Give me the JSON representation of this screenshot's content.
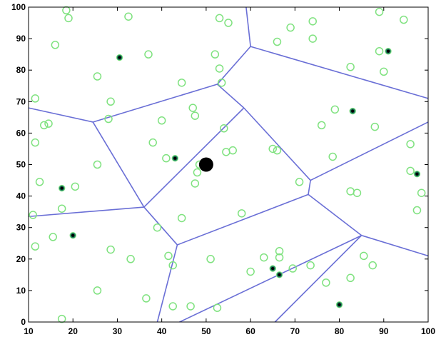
{
  "chart_data": {
    "type": "scatter",
    "title": "",
    "xlabel": "",
    "ylabel": "",
    "xlim": [
      10,
      100
    ],
    "ylim": [
      0,
      100
    ],
    "x_ticks": [
      "10",
      "20",
      "30",
      "40",
      "50",
      "60",
      "70",
      "80",
      "90",
      "100"
    ],
    "y_ticks": [
      "0",
      "10",
      "20",
      "30",
      "40",
      "50",
      "60",
      "70",
      "80",
      "90",
      "100"
    ],
    "grid": false,
    "legend": "none",
    "colors": {
      "circles": "#7fe27f",
      "stars": "#000000",
      "star_fill": "#1f7f60",
      "voronoi_edges": "#6a6fd6",
      "center": "#000000",
      "axes": "#000000"
    },
    "series": [
      {
        "marker": "circle",
        "points": [
          [
            18.5,
            99
          ],
          [
            19,
            96.5
          ],
          [
            16,
            88
          ],
          [
            32.5,
            97
          ],
          [
            53,
            96.5
          ],
          [
            55,
            95
          ],
          [
            74,
            95.5
          ],
          [
            89,
            98.5
          ],
          [
            94.5,
            96
          ],
          [
            69,
            93.5
          ],
          [
            66,
            89
          ],
          [
            74,
            90
          ],
          [
            37,
            85
          ],
          [
            52,
            85
          ],
          [
            53,
            80.5
          ],
          [
            82.5,
            81
          ],
          [
            89,
            86
          ],
          [
            90,
            79.5
          ],
          [
            25.5,
            78
          ],
          [
            44.5,
            76
          ],
          [
            53.5,
            76
          ],
          [
            11.5,
            71
          ],
          [
            28.5,
            70
          ],
          [
            47,
            68
          ],
          [
            47.5,
            65.5
          ],
          [
            40,
            64
          ],
          [
            28,
            64.5
          ],
          [
            14.5,
            63
          ],
          [
            13.5,
            62.5
          ],
          [
            79,
            67.5
          ],
          [
            88,
            62
          ],
          [
            76,
            62.5
          ],
          [
            54,
            61.5
          ],
          [
            11.5,
            57
          ],
          [
            38,
            57
          ],
          [
            56,
            54.5
          ],
          [
            54.5,
            54
          ],
          [
            65,
            55
          ],
          [
            66,
            54.5
          ],
          [
            78.5,
            52.5
          ],
          [
            96,
            56.5
          ],
          [
            25.5,
            50
          ],
          [
            41,
            52
          ],
          [
            48.5,
            50
          ],
          [
            48,
            47.5
          ],
          [
            96,
            48
          ],
          [
            12.5,
            44.5
          ],
          [
            20.5,
            43
          ],
          [
            47.5,
            44
          ],
          [
            71,
            44.5
          ],
          [
            82.5,
            41.5
          ],
          [
            84,
            41
          ],
          [
            98.5,
            41
          ],
          [
            97.5,
            35.5
          ],
          [
            17.5,
            36
          ],
          [
            11,
            34
          ],
          [
            58,
            34.5
          ],
          [
            44.5,
            33
          ],
          [
            15.5,
            27
          ],
          [
            39,
            30
          ],
          [
            11.5,
            24
          ],
          [
            28.5,
            23
          ],
          [
            66.5,
            22.5
          ],
          [
            63,
            20.5
          ],
          [
            66.5,
            20.5
          ],
          [
            41.5,
            21
          ],
          [
            42.5,
            18
          ],
          [
            51,
            20
          ],
          [
            33,
            20
          ],
          [
            60,
            16
          ],
          [
            69.5,
            17
          ],
          [
            73.5,
            18
          ],
          [
            85.5,
            21
          ],
          [
            87.5,
            18
          ],
          [
            77,
            12.5
          ],
          [
            82.5,
            14
          ],
          [
            25.5,
            10
          ],
          [
            36.5,
            7.5
          ],
          [
            42.5,
            5
          ],
          [
            46.5,
            5
          ],
          [
            52.5,
            4.5
          ],
          [
            17.5,
            1
          ]
        ]
      },
      {
        "marker": "star",
        "points": [
          [
            30.5,
            84
          ],
          [
            91,
            86
          ],
          [
            83,
            67
          ],
          [
            43,
            52
          ],
          [
            97.5,
            47
          ],
          [
            17.5,
            42.5
          ],
          [
            20,
            27.5
          ],
          [
            65,
            17
          ],
          [
            66.5,
            15
          ],
          [
            80,
            5.5
          ]
        ]
      },
      {
        "marker": "large-dot",
        "points": [
          [
            50,
            50
          ]
        ]
      }
    ],
    "voronoi_edges": [
      [
        [
          10,
          68
        ],
        [
          24.5,
          63.5
        ]
      ],
      [
        [
          24.5,
          63.5
        ],
        [
          52.5,
          75.5
        ]
      ],
      [
        [
          52.5,
          75.5
        ],
        [
          60,
          87.5
        ]
      ],
      [
        [
          60,
          87.5
        ],
        [
          59,
          100
        ]
      ],
      [
        [
          60,
          87.5
        ],
        [
          100,
          71
        ]
      ],
      [
        [
          52.5,
          75.5
        ],
        [
          58.5,
          68
        ]
      ],
      [
        [
          58.5,
          68
        ],
        [
          36,
          36.5
        ]
      ],
      [
        [
          24.5,
          63.5
        ],
        [
          36,
          36.5
        ]
      ],
      [
        [
          10,
          33.5
        ],
        [
          36,
          36.5
        ]
      ],
      [
        [
          36,
          36.5
        ],
        [
          43.5,
          24.5
        ]
      ],
      [
        [
          58.5,
          68
        ],
        [
          73.5,
          45
        ]
      ],
      [
        [
          73.5,
          45
        ],
        [
          100,
          63.5
        ]
      ],
      [
        [
          73.5,
          45
        ],
        [
          73,
          40.5
        ]
      ],
      [
        [
          43.5,
          24.5
        ],
        [
          73,
          40.5
        ]
      ],
      [
        [
          73,
          40.5
        ],
        [
          85,
          27.5
        ]
      ],
      [
        [
          85,
          27.5
        ],
        [
          100,
          21
        ]
      ],
      [
        [
          43.5,
          24.5
        ],
        [
          39,
          0
        ]
      ],
      [
        [
          85,
          27.5
        ],
        [
          44,
          0
        ]
      ],
      [
        [
          85,
          27.5
        ],
        [
          65.5,
          0
        ]
      ]
    ]
  }
}
